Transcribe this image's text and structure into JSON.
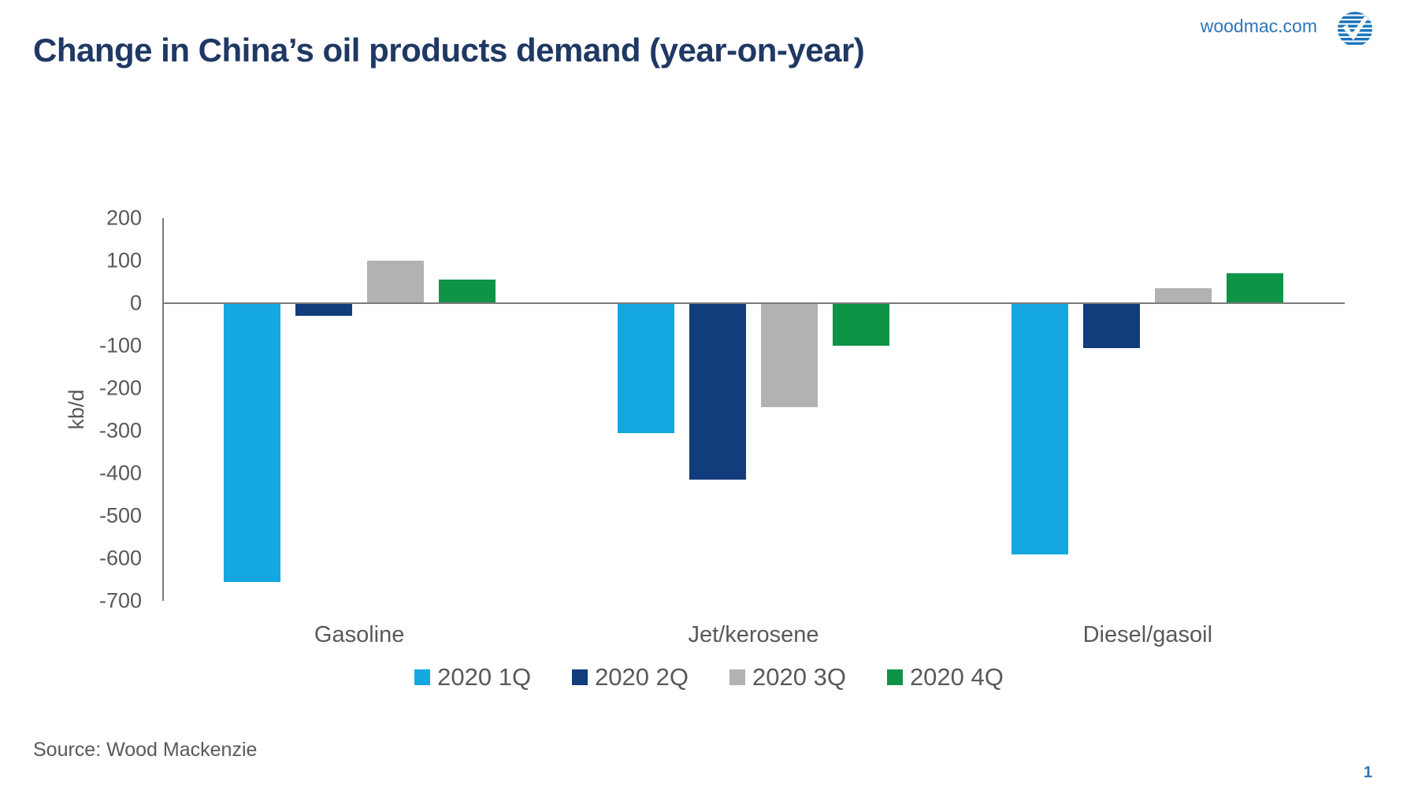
{
  "header": {
    "title": "Change in China’s oil products demand (year-on-year)",
    "site_link": "woodmac.com",
    "logo_name": "wood-mackenzie-logo",
    "brand_blue": "#2e74b5",
    "title_color": "#1f3864"
  },
  "footer": {
    "source": "Source: Wood Mackenzie",
    "page_number": "1"
  },
  "chart_data": {
    "type": "bar",
    "title": "Change in China’s oil products demand (year-on-year)",
    "categories": [
      "Gasoline",
      "Jet/kerosene",
      "Diesel/gasoil"
    ],
    "series": [
      {
        "name": "2020 1Q",
        "color": "#14a7e0",
        "values": [
          -655,
          -305,
          -590
        ]
      },
      {
        "name": "2020 2Q",
        "color": "#123d7c",
        "values": [
          -30,
          -415,
          -105
        ]
      },
      {
        "name": "2020 3Q",
        "color": "#b1b2b4",
        "values": [
          100,
          -245,
          35
        ]
      },
      {
        "name": "2020 4Q",
        "color": "#0e9347",
        "values": [
          55,
          -100,
          70
        ]
      }
    ],
    "xlabel": "",
    "ylabel": "kb/d",
    "ylim": [
      -700,
      200
    ],
    "ytick_step": 100,
    "grid": false,
    "legend_position": "bottom",
    "axis_color": "#7a7a7a",
    "text_color": "#595959"
  }
}
